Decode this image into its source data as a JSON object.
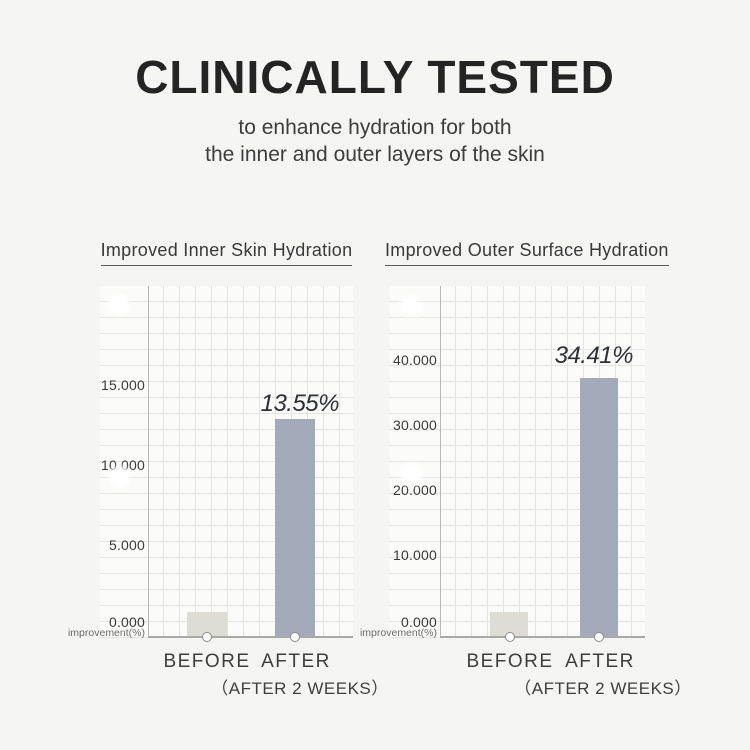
{
  "header": {
    "title": "CLINICALLY TESTED",
    "subtitle_line1": "to enhance hydration for both",
    "subtitle_line2": "the inner and outer layers of the skin"
  },
  "charts": [
    {
      "title": "Improved Inner Skin Hydration",
      "yticks": [
        "15.000",
        "10.000",
        "5.000",
        "0.000"
      ],
      "axis_caption": "improvement(%)",
      "annotation": "13.55%",
      "categories": [
        "BEFORE",
        "AFTER"
      ],
      "x_sublabel": "（AFTER 2 WEEKS）"
    },
    {
      "title": "Improved Outer Surface Hydration",
      "yticks": [
        "40.000",
        "30.000",
        "20.000",
        "10.000",
        "0.000"
      ],
      "axis_caption": "improvement(%)",
      "annotation": "34.41%",
      "categories": [
        "BEFORE",
        "AFTER"
      ],
      "x_sublabel": "（AFTER 2 WEEKS）"
    }
  ],
  "chart_data": [
    {
      "type": "bar",
      "title": "Improved Inner Skin Hydration",
      "categories": [
        "BEFORE",
        "AFTER (AFTER 2 WEEKS)"
      ],
      "values": [
        1.5,
        13.55
      ],
      "data_labels": [
        "",
        "13.55%"
      ],
      "ylabel": "improvement(%)",
      "ytick_labels": [
        "15.000",
        "10.000",
        "5.000",
        "0.000"
      ],
      "ylim": [
        0,
        22
      ],
      "grid": true,
      "legend": "none",
      "bar_colors": [
        "#deddd4",
        "#a3abba"
      ]
    },
    {
      "type": "bar",
      "title": "Improved Outer Surface Hydration",
      "categories": [
        "BEFORE",
        "AFTER (AFTER 2 WEEKS)"
      ],
      "values": [
        3.2,
        34.41
      ],
      "data_labels": [
        "",
        "34.41%"
      ],
      "ylabel": "improvement(%)",
      "ytick_labels": [
        "40.000",
        "30.000",
        "20.000",
        "10.000",
        "0.000"
      ],
      "ylim": [
        0,
        54
      ],
      "grid": true,
      "legend": "none",
      "bar_colors": [
        "#deddd4",
        "#a3abba"
      ]
    }
  ],
  "colors": {
    "page_background": "#f5f5f3",
    "paper_background": "#fbfbfa",
    "grid_line": "#e4e4e1",
    "axis_line": "#a9a9a6",
    "bar_before": "#deddd4",
    "bar_after": "#a3abba",
    "title_text": "#242424"
  }
}
